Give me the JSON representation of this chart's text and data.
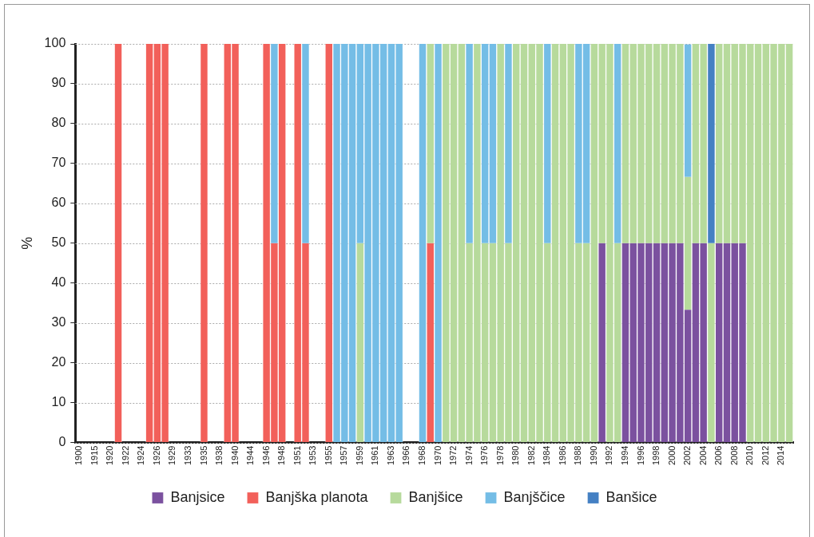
{
  "chart_data": {
    "type": "bar",
    "ylabel": "%",
    "stacked": true,
    "grid": "y",
    "legend": "bottom",
    "ylim": [
      0,
      100
    ],
    "yticks": [
      0,
      10,
      20,
      30,
      40,
      50,
      60,
      70,
      80,
      90,
      100
    ],
    "categories": [
      "1900",
      null,
      "1915",
      null,
      "1920",
      null,
      "1922",
      null,
      "1924",
      null,
      "1926",
      null,
      "1929",
      null,
      "1933",
      null,
      "1935",
      null,
      "1938",
      null,
      "1940",
      null,
      "1944",
      null,
      "1946",
      null,
      "1948",
      null,
      "1951",
      null,
      "1953",
      null,
      "1955",
      null,
      "1957",
      null,
      "1959",
      null,
      "1961",
      null,
      "1963",
      null,
      "1966",
      null,
      "1968",
      null,
      "1970",
      null,
      "1972",
      null,
      "1974",
      null,
      "1976",
      null,
      "1978",
      null,
      "1980",
      null,
      "1982",
      null,
      "1984",
      null,
      "1986",
      null,
      "1988",
      null,
      "1990",
      null,
      "1992",
      null,
      "1994",
      null,
      "1996",
      null,
      "1998",
      null,
      "2000",
      null,
      "2002",
      null,
      "2004",
      null,
      "2006",
      null,
      "2008",
      null,
      "2010",
      null,
      "2012",
      null,
      "2014",
      null
    ],
    "series": [
      {
        "name": "Banjsice",
        "color": "#7b519f",
        "values": [
          null,
          null,
          null,
          null,
          null,
          null,
          null,
          null,
          null,
          null,
          null,
          null,
          null,
          null,
          null,
          null,
          null,
          null,
          null,
          null,
          null,
          null,
          null,
          null,
          null,
          null,
          null,
          null,
          null,
          null,
          null,
          null,
          null,
          null,
          null,
          null,
          null,
          null,
          null,
          null,
          null,
          null,
          null,
          null,
          null,
          null,
          null,
          null,
          null,
          null,
          null,
          null,
          null,
          null,
          null,
          null,
          null,
          null,
          null,
          null,
          null,
          null,
          null,
          null,
          null,
          null,
          null,
          50,
          null,
          null,
          50,
          50,
          50,
          50,
          50,
          50,
          50,
          50,
          33.3,
          50,
          50,
          null,
          50,
          50,
          50,
          50,
          null,
          null,
          null,
          null,
          null,
          null
        ]
      },
      {
        "name": "Banjška planota",
        "color": "#f2605a",
        "values": [
          null,
          null,
          null,
          null,
          null,
          100,
          null,
          null,
          null,
          100,
          100,
          100,
          null,
          null,
          null,
          null,
          100,
          null,
          null,
          100,
          100,
          null,
          null,
          null,
          100,
          50,
          100,
          null,
          100,
          50,
          null,
          null,
          100,
          null,
          null,
          null,
          null,
          null,
          null,
          null,
          null,
          null,
          null,
          null,
          null,
          50,
          null,
          null,
          null,
          null,
          null,
          null,
          null,
          null,
          null,
          null,
          null,
          null,
          null,
          null,
          null,
          null,
          null,
          null,
          null,
          null,
          null,
          null,
          null,
          null,
          null,
          null,
          null,
          null,
          null,
          null,
          null,
          null,
          null,
          null,
          null,
          null,
          null,
          null,
          null,
          null,
          null,
          null,
          null,
          null,
          null,
          null
        ]
      },
      {
        "name": "Banjšice",
        "color": "#b7da9c",
        "values": [
          null,
          null,
          null,
          null,
          null,
          null,
          null,
          null,
          null,
          null,
          null,
          null,
          null,
          null,
          null,
          null,
          null,
          null,
          null,
          null,
          null,
          null,
          null,
          null,
          null,
          null,
          null,
          null,
          null,
          null,
          null,
          null,
          null,
          null,
          null,
          null,
          50,
          null,
          null,
          null,
          null,
          null,
          null,
          null,
          null,
          50,
          null,
          100,
          100,
          100,
          50,
          100,
          50,
          50,
          100,
          50,
          100,
          100,
          100,
          100,
          50,
          100,
          100,
          100,
          50,
          50,
          100,
          50,
          100,
          50,
          50,
          50,
          50,
          50,
          50,
          50,
          50,
          50,
          33.3,
          50,
          50,
          50,
          50,
          50,
          50,
          50,
          100,
          100,
          100,
          100,
          100,
          100
        ]
      },
      {
        "name": "Banjščice",
        "color": "#74bde6",
        "values": [
          null,
          null,
          null,
          null,
          null,
          null,
          null,
          null,
          null,
          null,
          null,
          null,
          null,
          null,
          null,
          null,
          null,
          null,
          null,
          null,
          null,
          null,
          null,
          null,
          null,
          50,
          null,
          null,
          null,
          50,
          null,
          null,
          null,
          100,
          100,
          100,
          50,
          100,
          100,
          100,
          100,
          100,
          null,
          null,
          100,
          null,
          100,
          null,
          null,
          null,
          50,
          null,
          50,
          50,
          null,
          50,
          null,
          null,
          null,
          null,
          50,
          null,
          null,
          null,
          50,
          50,
          null,
          null,
          null,
          50,
          null,
          null,
          null,
          null,
          null,
          null,
          null,
          null,
          33.3,
          null,
          null,
          null,
          null,
          null,
          null,
          null,
          null,
          null,
          null,
          null,
          null,
          null
        ]
      },
      {
        "name": "Banšice",
        "color": "#4480c3",
        "values": [
          null,
          null,
          null,
          null,
          null,
          null,
          null,
          null,
          null,
          null,
          null,
          null,
          null,
          null,
          null,
          null,
          null,
          null,
          null,
          null,
          null,
          null,
          null,
          null,
          null,
          null,
          null,
          null,
          null,
          null,
          null,
          null,
          null,
          null,
          null,
          null,
          null,
          null,
          null,
          null,
          null,
          null,
          null,
          null,
          null,
          null,
          null,
          null,
          null,
          null,
          null,
          null,
          null,
          null,
          null,
          null,
          null,
          null,
          null,
          null,
          null,
          null,
          null,
          null,
          null,
          null,
          null,
          null,
          null,
          null,
          null,
          null,
          null,
          null,
          null,
          null,
          null,
          null,
          null,
          null,
          null,
          50,
          null,
          null,
          null,
          null,
          null,
          null,
          null,
          null,
          null,
          null
        ]
      }
    ]
  }
}
